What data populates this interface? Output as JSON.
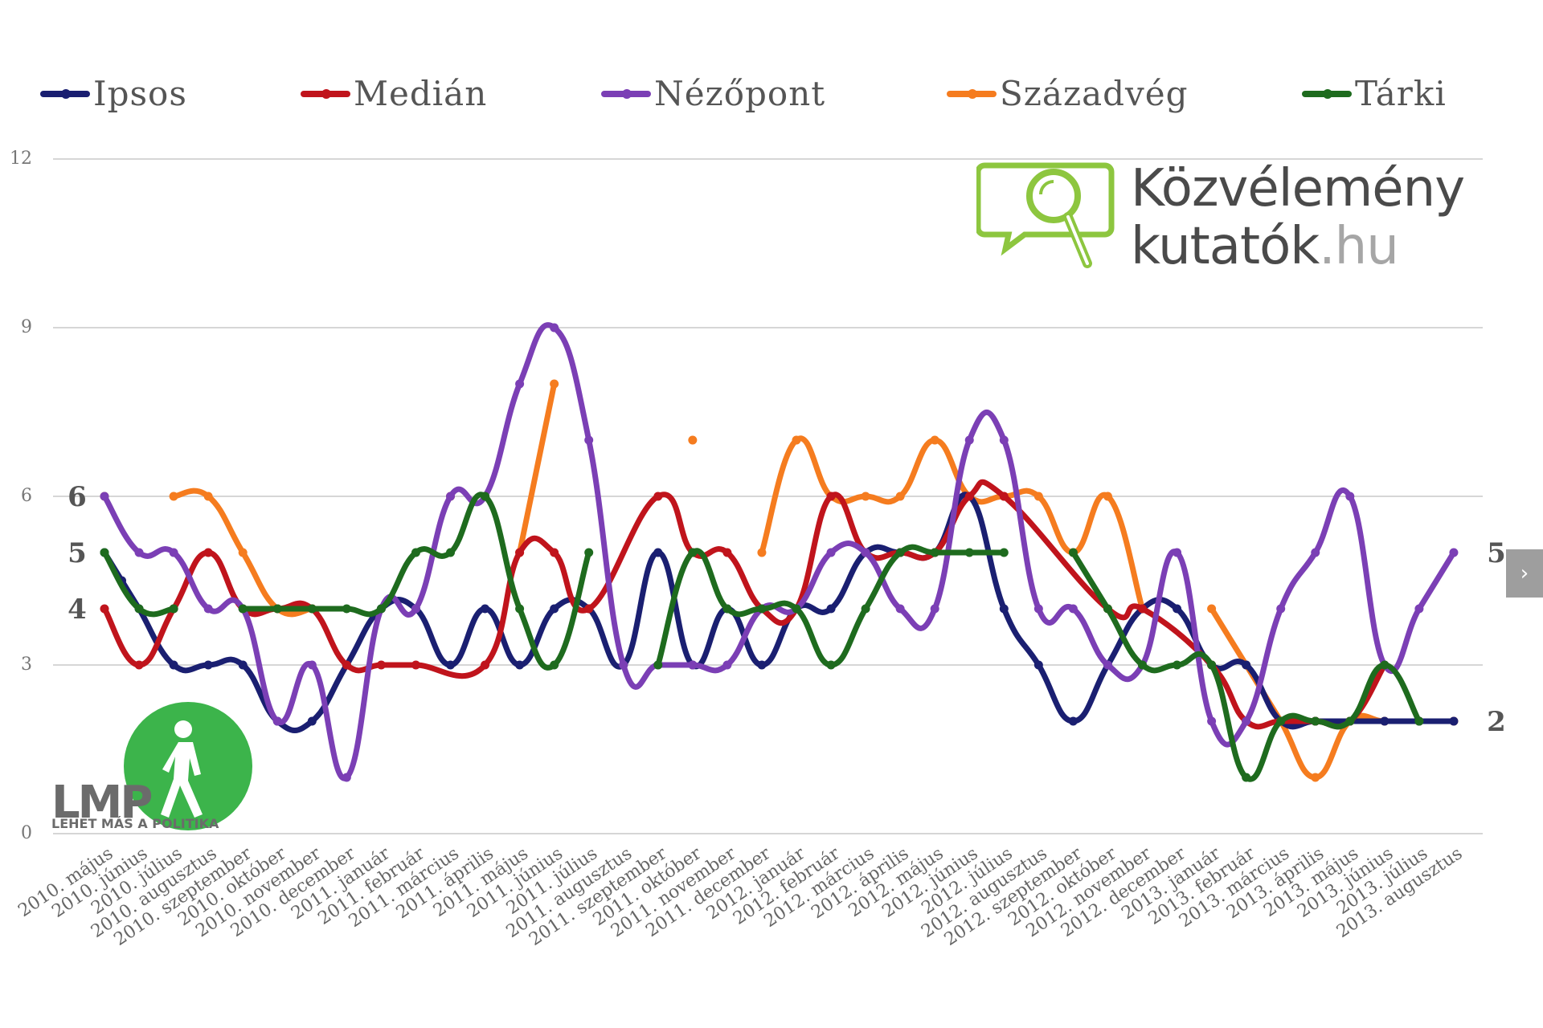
{
  "legend": [
    {
      "name": "Ipsos",
      "color": "#1a1f71"
    },
    {
      "name": "Medián",
      "color": "#c0141c"
    },
    {
      "name": "Nézőpont",
      "color": "#7b3fb5"
    },
    {
      "name": "Századvég",
      "color": "#f57c1f"
    },
    {
      "name": "Tárki",
      "color": "#1e6b1e"
    }
  ],
  "watermark": {
    "line1": "Közvélemény",
    "line2_main": "kutatók",
    "line2_tld": ".hu",
    "icon": "magnifier-speech-bubble-icon",
    "color": "#8dc63f"
  },
  "logo": {
    "name": "LMP",
    "slogan": "LEHET MÁS A POLITIKA",
    "icon": "walking-person-icon",
    "color": "#3cb44b"
  },
  "next_icon": "chevron-right-icon",
  "next_label": "›",
  "chart_data": {
    "type": "line",
    "ylim": [
      0,
      12
    ],
    "yticks": [
      "0",
      "3",
      "6",
      "9",
      "12"
    ],
    "grid": true,
    "legend_position": "top",
    "categories": [
      "2010. május",
      "2010. június",
      "2010. július",
      "2010. augusztus",
      "2010. szeptember",
      "2010. október",
      "2010. november",
      "2010. december",
      "2011. január",
      "2011. február",
      "2011. március",
      "2011. április",
      "2011. május",
      "2011. június",
      "2011. július",
      "2011. augusztus",
      "2011. szeptember",
      "2011. október",
      "2011. november",
      "2011. december",
      "2012. január",
      "2012. február",
      "2012. március",
      "2012. április",
      "2012. május",
      "2012. június",
      "2012. július",
      "2012. augusztus",
      "2012. szeptember",
      "2012. október",
      "2012. november",
      "2012. december",
      "2013. január",
      "2013. február",
      "2013. március",
      "2013. április",
      "2013. május",
      "2013. június",
      "2013. július",
      "2013. augusztus"
    ],
    "start_labels": [
      {
        "text": "6",
        "value": 6
      },
      {
        "text": "5",
        "value": 5
      },
      {
        "text": "4",
        "value": 4
      }
    ],
    "end_labels": [
      {
        "text": "5",
        "value": 5
      },
      {
        "text": "2",
        "value": 2
      }
    ],
    "series": [
      {
        "name": "Ipsos",
        "color": "#1a1f71",
        "x": [
          0,
          0.5,
          1,
          2,
          3,
          4,
          5,
          6,
          7,
          8,
          9,
          10,
          11,
          12,
          13,
          14,
          15,
          16,
          17,
          18,
          19,
          20,
          21,
          22,
          23,
          24,
          25,
          26,
          27,
          28,
          29,
          30,
          31,
          32,
          33,
          34,
          35,
          36,
          37,
          38,
          39
        ],
        "values": [
          5,
          4.5,
          4,
          3,
          3,
          3,
          2,
          2,
          3,
          4,
          4,
          3,
          4,
          3,
          4,
          4,
          3,
          5,
          3,
          4,
          3,
          4,
          4,
          5,
          5,
          5,
          6,
          4,
          3,
          2,
          3,
          4,
          4,
          3,
          3,
          2,
          2,
          2,
          2,
          2,
          2
        ]
      },
      {
        "name": "Medián",
        "color": "#c0141c",
        "x": [
          0,
          1,
          2,
          3,
          4,
          5,
          6,
          7,
          8,
          9,
          11,
          12,
          13,
          14,
          16,
          17,
          18,
          19,
          20,
          21,
          22,
          23,
          24,
          25,
          26,
          29,
          30,
          32,
          33,
          34,
          35,
          36,
          37
        ],
        "values": [
          4,
          3,
          4,
          5,
          4,
          4,
          4,
          3,
          3,
          3,
          3,
          5,
          5,
          4,
          6,
          5,
          5,
          4,
          4,
          6,
          5,
          5,
          5,
          6,
          6,
          4,
          4,
          3,
          2,
          2,
          2,
          2,
          3
        ]
      },
      {
        "name": "Nézőpont",
        "color": "#7b3fb5",
        "x": [
          0,
          1,
          2,
          3,
          4,
          5,
          6,
          7,
          8,
          9,
          10,
          11,
          12,
          13,
          14,
          15,
          16,
          17,
          18,
          19,
          20,
          21,
          22,
          23,
          24,
          25,
          26,
          27,
          28,
          29,
          30,
          31,
          32,
          33,
          34,
          35,
          36,
          37,
          38,
          39
        ],
        "values": [
          6,
          5,
          5,
          4,
          4,
          2,
          3,
          1,
          4,
          4,
          6,
          6,
          8,
          9,
          7,
          3,
          3,
          3,
          3,
          4,
          4,
          5,
          5,
          4,
          4,
          7,
          7,
          4,
          4,
          3,
          3,
          5,
          2,
          2,
          4,
          5,
          6,
          3,
          4,
          5
        ]
      },
      {
        "name": "Századvég",
        "color": "#f57c1f",
        "segments": [
          {
            "x": [
              0
            ],
            "values": [
              6
            ]
          },
          {
            "x": [
              2,
              3,
              4,
              5,
              6
            ],
            "values": [
              6,
              6,
              5,
              4,
              4
            ]
          },
          {
            "x": [
              10
            ],
            "values": [
              6
            ]
          },
          {
            "x": [
              12,
              13
            ],
            "values": [
              5,
              8
            ]
          },
          {
            "x": [
              17
            ],
            "values": [
              7
            ]
          },
          {
            "x": [
              19,
              20,
              21,
              22,
              23,
              24,
              25,
              26,
              27,
              28,
              29,
              30
            ],
            "values": [
              5,
              7,
              6,
              6,
              6,
              7,
              6,
              6,
              6,
              5,
              6,
              4
            ]
          },
          {
            "x": [
              32,
              33,
              34,
              35,
              36,
              37,
              38
            ],
            "values": [
              4,
              3,
              2,
              1,
              2,
              2,
              2
            ]
          },
          {
            "x": [
              39
            ],
            "values": [
              2
            ]
          }
        ]
      },
      {
        "name": "Tárki",
        "color": "#1e6b1e",
        "segments": [
          {
            "x": [
              0,
              1,
              2
            ],
            "values": [
              5,
              4,
              4
            ]
          },
          {
            "x": [
              4,
              5,
              6,
              7,
              8,
              9,
              10,
              11,
              12,
              13,
              14
            ],
            "values": [
              4,
              4,
              4,
              4,
              4,
              5,
              5,
              6,
              4,
              3,
              5
            ]
          },
          {
            "x": [
              16,
              17,
              18,
              19,
              20,
              21,
              22,
              23,
              24,
              25,
              26
            ],
            "values": [
              3,
              5,
              4,
              4,
              4,
              3,
              4,
              5,
              5,
              5,
              5
            ]
          },
          {
            "x": [
              28,
              29,
              30,
              31,
              32,
              33,
              34,
              35,
              36,
              37,
              38
            ],
            "values": [
              5,
              4,
              3,
              3,
              3,
              1,
              2,
              2,
              2,
              3,
              2
            ]
          }
        ]
      }
    ]
  }
}
